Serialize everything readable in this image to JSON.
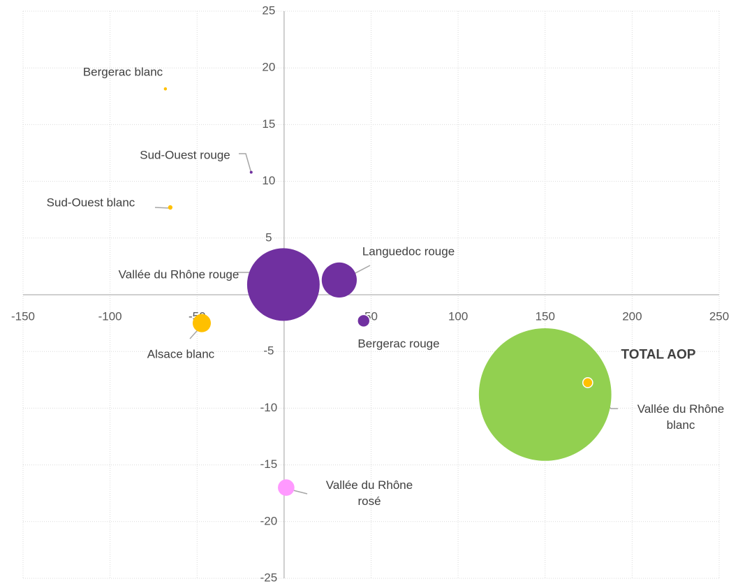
{
  "chart_data": {
    "type": "bubble",
    "xlim": [
      -150,
      250
    ],
    "xticks": [
      -150,
      -100,
      -50,
      0,
      50,
      100,
      150,
      200,
      250
    ],
    "ylim": [
      -25,
      25
    ],
    "yticks": [
      -25,
      -20,
      -15,
      -10,
      -5,
      0,
      5,
      10,
      15,
      20,
      25
    ],
    "grid": true,
    "series": [
      {
        "name": "Bergerac blanc",
        "color": "#ffc000",
        "x": [
          -68.2
        ],
        "values": [
          18.15
        ],
        "sizes": [
          0.05
        ]
      },
      {
        "name": "Sud-Ouest rouge",
        "color": "#7030a0",
        "x": [
          -18.9
        ],
        "values": [
          10.8
        ],
        "sizes": [
          0.03
        ]
      },
      {
        "name": "Sud-Ouest blanc",
        "color": "#ffc000",
        "x": [
          -65.4
        ],
        "values": [
          7.7
        ],
        "sizes": [
          0.1
        ]
      },
      {
        "name": "Vallée du Rhône rouge",
        "color": "#7030a0",
        "x": [
          -0.4
        ],
        "values": [
          0.9
        ],
        "sizes": [
          27
        ]
      },
      {
        "name": "Languedoc rouge",
        "color": "#7030a0",
        "x": [
          31.7
        ],
        "values": [
          1.3
        ],
        "sizes": [
          6.3
        ]
      },
      {
        "name": "Bergerac rouge",
        "color": "#7030a0",
        "x": [
          45.7
        ],
        "values": [
          -2.3
        ],
        "sizes": [
          0.8
        ]
      },
      {
        "name": "Alsace blanc",
        "color": "#ffc000",
        "x": [
          -47.3
        ],
        "values": [
          -2.5
        ],
        "sizes": [
          1.7
        ]
      },
      {
        "name": "TOTAL AOP",
        "color": "#92d050",
        "x": [
          150
        ],
        "values": [
          -8.8
        ],
        "sizes": [
          90
        ]
      },
      {
        "name": "Vallée du Rhône blanc",
        "color": "#ffc000",
        "x": [
          174.5
        ],
        "values": [
          -7.75
        ],
        "sizes": [
          0.5
        ]
      },
      {
        "name": "Vallée du Rhône rosé",
        "color": "#ff99ff",
        "x": [
          1.2
        ],
        "values": [
          -17
        ],
        "sizes": [
          1.4
        ]
      }
    ]
  }
}
